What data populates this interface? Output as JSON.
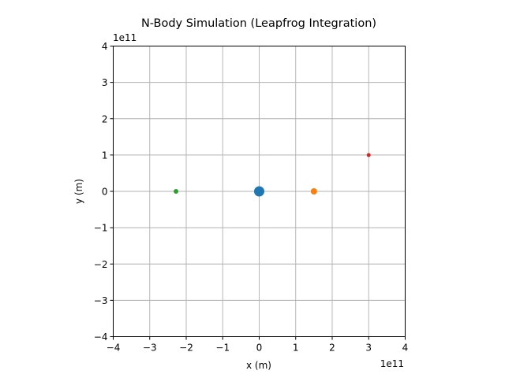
{
  "chart_data": {
    "type": "scatter",
    "title": "N-Body Simulation (Leapfrog Integration)",
    "xlabel": "x (m)",
    "ylabel": "y (m)",
    "x_offset_label": "1e11",
    "y_offset_label": "1e11",
    "xlim": [
      -4,
      4
    ],
    "ylim": [
      -4,
      4
    ],
    "xticks": [
      -4,
      -3,
      -2,
      -1,
      0,
      1,
      2,
      3,
      4
    ],
    "yticks": [
      -4,
      -3,
      -2,
      -1,
      0,
      1,
      2,
      3,
      4
    ],
    "xtick_labels": [
      "−4",
      "−3",
      "−2",
      "−1",
      "0",
      "1",
      "2",
      "3",
      "4"
    ],
    "ytick_labels": [
      "−4",
      "−3",
      "−2",
      "−1",
      "0",
      "1",
      "2",
      "3",
      "4"
    ],
    "grid": true,
    "bodies": [
      {
        "x": 0.0,
        "y": 0.0,
        "color": "#1f77b4",
        "marker_size": "large"
      },
      {
        "x": 1.5,
        "y": 0.0,
        "color": "#ff7f0e",
        "marker_size": "medium"
      },
      {
        "x": -2.28,
        "y": 0.0,
        "color": "#2ca02c",
        "marker_size": "small"
      },
      {
        "x": 3.0,
        "y": 1.0,
        "color": "#d62728",
        "marker_size": "tiny"
      }
    ]
  }
}
